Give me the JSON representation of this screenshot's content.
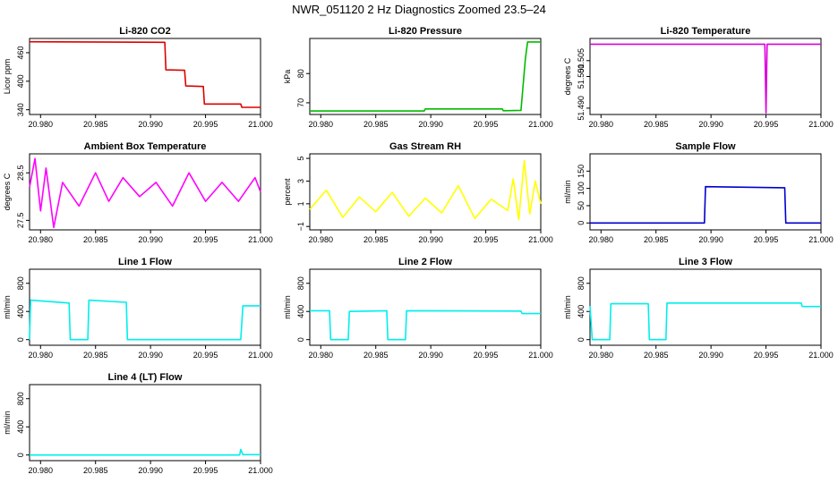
{
  "page_title": "NWR_051120  2 Hz Diagnostics Zoomed 23.5–24",
  "x_ticks": [
    "20.980",
    "20.985",
    "20.990",
    "20.995",
    "21.000"
  ],
  "chart_data": [
    {
      "type": "line",
      "title": "Li‐820 CO2",
      "ylabel": "Licor ppm",
      "color": "#dd0000",
      "xlim": [
        20.979,
        21.0
      ],
      "ylim": [
        330,
        490
      ],
      "yticks": [
        "340",
        "400",
        "460"
      ],
      "ytick_values": [
        340,
        400,
        460
      ],
      "x": [
        20.979,
        20.9913,
        20.9914,
        20.9931,
        20.9932,
        20.9948,
        20.9949,
        20.9982,
        20.9983,
        21.0
      ],
      "values": [
        483,
        482,
        424,
        423,
        390,
        389,
        352,
        352,
        345,
        345
      ]
    },
    {
      "type": "line",
      "title": "Li‐820 Pressure",
      "ylabel": "kPa",
      "color": "#00bb00",
      "xlim": [
        20.979,
        21.0
      ],
      "ylim": [
        66,
        92
      ],
      "yticks": [
        "70",
        "80"
      ],
      "ytick_values": [
        70,
        80
      ],
      "x": [
        20.979,
        20.9894,
        20.9895,
        20.9965,
        20.9966,
        20.9982,
        20.9986,
        20.9988,
        21.0
      ],
      "values": [
        67.2,
        67.2,
        67.9,
        67.9,
        67.3,
        67.4,
        85,
        90.8,
        90.8
      ]
    },
    {
      "type": "line",
      "title": "Li‐820 Temperature",
      "ylabel": "degrees C",
      "color": "#dd00dd",
      "xlim": [
        20.979,
        21.0
      ],
      "ylim": [
        51.488,
        51.512
      ],
      "yticks": [
        "51.490",
        "51.500",
        "51.505"
      ],
      "ytick_values": [
        51.49,
        51.5,
        51.505
      ],
      "x": [
        20.979,
        20.9949,
        20.995,
        20.9951,
        21.0
      ],
      "values": [
        51.5102,
        51.5102,
        51.4885,
        51.5102,
        51.5102
      ]
    },
    {
      "type": "line",
      "title": "Ambient Box Temperature",
      "ylabel": "degrees C",
      "color": "#ff00ff",
      "xlim": [
        20.979,
        21.0
      ],
      "ylim": [
        27.3,
        28.9
      ],
      "yticks": [
        "27.5",
        "28.5"
      ],
      "ytick_values": [
        27.5,
        28.5
      ],
      "x": [
        20.979,
        20.9795,
        20.98,
        20.9805,
        20.9812,
        20.982,
        20.9835,
        20.985,
        20.9862,
        20.9875,
        20.989,
        20.9905,
        20.992,
        20.9935,
        20.995,
        20.9965,
        20.998,
        20.9995,
        21.0
      ],
      "values": [
        28.2,
        28.8,
        27.7,
        28.6,
        27.35,
        28.3,
        27.8,
        28.5,
        27.9,
        28.4,
        28.0,
        28.3,
        27.8,
        28.5,
        27.9,
        28.3,
        27.9,
        28.4,
        28.1
      ]
    },
    {
      "type": "line",
      "title": "Gas Stream RH",
      "ylabel": "percent",
      "color": "#ffff00",
      "xlim": [
        20.979,
        21.0
      ],
      "ylim": [
        -1.3,
        5.4
      ],
      "yticks": [
        "−1",
        "1",
        "3",
        "5"
      ],
      "ytick_values": [
        -1,
        1,
        3,
        5
      ],
      "x": [
        20.979,
        20.9805,
        20.982,
        20.9835,
        20.985,
        20.9865,
        20.988,
        20.9895,
        20.991,
        20.9925,
        20.994,
        20.9955,
        20.997,
        20.9975,
        20.998,
        20.9985,
        20.999,
        20.9995,
        21.0
      ],
      "values": [
        0.5,
        2.2,
        -0.2,
        1.6,
        0.3,
        2.0,
        -0.1,
        1.5,
        0.2,
        2.6,
        -0.3,
        1.4,
        0.4,
        3.2,
        -0.4,
        4.8,
        0.1,
        3.0,
        1.0
      ]
    },
    {
      "type": "line",
      "title": "Sample Flow",
      "ylabel": "ml/min",
      "color": "#0000cc",
      "xlim": [
        20.979,
        21.0
      ],
      "ylim": [
        -20,
        200
      ],
      "yticks": [
        "0",
        "50",
        "100",
        "150"
      ],
      "ytick_values": [
        0,
        50,
        100,
        150
      ],
      "x": [
        20.979,
        20.9894,
        20.9895,
        20.9967,
        20.9968,
        21.0
      ],
      "values": [
        0,
        0,
        105,
        102,
        0,
        0
      ]
    },
    {
      "type": "line",
      "title": "Line 1 Flow",
      "ylabel": "ml/min",
      "color": "#00eeee",
      "xlim": [
        20.979,
        21.0
      ],
      "ylim": [
        -80,
        1000
      ],
      "yticks": [
        "0",
        "400",
        "800"
      ],
      "ytick_values": [
        0,
        400,
        800
      ],
      "x": [
        20.979,
        20.9791,
        20.9826,
        20.9827,
        20.9843,
        20.9844,
        20.9878,
        20.9879,
        20.9982,
        20.9984,
        21.0
      ],
      "values": [
        0,
        560,
        520,
        0,
        0,
        560,
        530,
        0,
        0,
        480,
        480
      ]
    },
    {
      "type": "line",
      "title": "Line 2 Flow",
      "ylabel": "ml/min",
      "color": "#00eeee",
      "xlim": [
        20.979,
        21.0
      ],
      "ylim": [
        -80,
        1000
      ],
      "yticks": [
        "0",
        "400",
        "800"
      ],
      "ytick_values": [
        0,
        400,
        800
      ],
      "x": [
        20.979,
        20.9808,
        20.9809,
        20.9825,
        20.9826,
        20.986,
        20.9861,
        20.9877,
        20.9878,
        20.9982,
        20.9983,
        21.0
      ],
      "values": [
        410,
        410,
        0,
        0,
        400,
        410,
        0,
        0,
        410,
        405,
        370,
        370
      ]
    },
    {
      "type": "line",
      "title": "Line 3 Flow",
      "ylabel": "ml/min",
      "color": "#00eeee",
      "xlim": [
        20.979,
        21.0
      ],
      "ylim": [
        -80,
        1000
      ],
      "yticks": [
        "0",
        "400",
        "800"
      ],
      "ytick_values": [
        0,
        400,
        800
      ],
      "x": [
        20.979,
        20.9792,
        20.9808,
        20.9809,
        20.9843,
        20.9844,
        20.9859,
        20.986,
        20.9982,
        20.9983,
        21.0
      ],
      "values": [
        480,
        0,
        0,
        510,
        510,
        0,
        0,
        520,
        520,
        470,
        470
      ]
    },
    {
      "type": "line",
      "title": "Line 4 (LT) Flow",
      "ylabel": "ml/min",
      "color": "#00eeee",
      "xlim": [
        20.979,
        21.0
      ],
      "ylim": [
        -80,
        1000
      ],
      "yticks": [
        "0",
        "400",
        "800"
      ],
      "ytick_values": [
        0,
        400,
        800
      ],
      "x": [
        20.979,
        20.9981,
        20.9982,
        20.9984,
        21.0
      ],
      "values": [
        0,
        0,
        80,
        5,
        5
      ]
    }
  ]
}
